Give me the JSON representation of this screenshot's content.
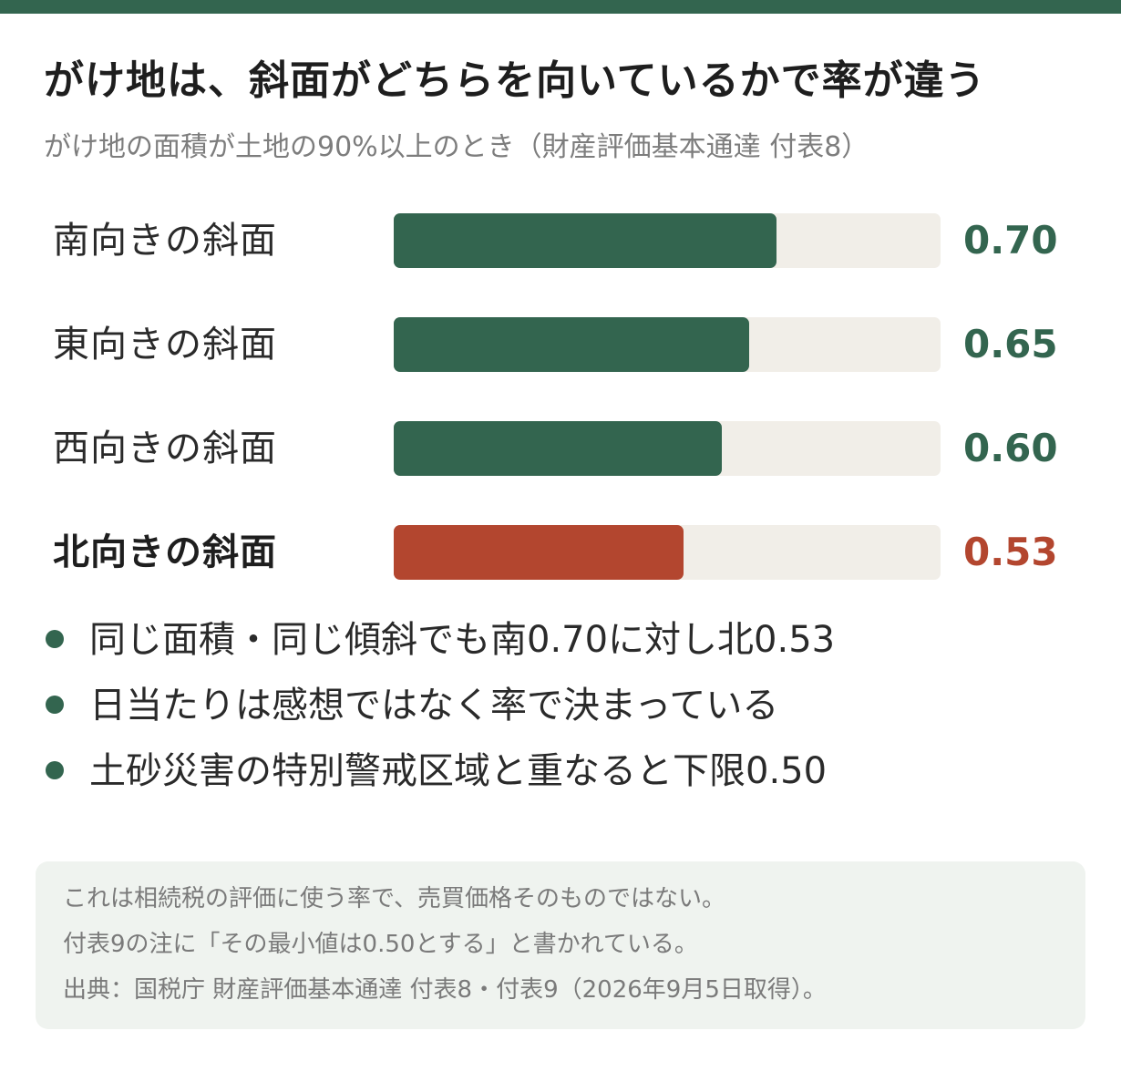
{
  "colors": {
    "accent": "#33654f",
    "highlight": "#b3462f",
    "track": "#f1eee8",
    "note_bg": "#eff3ef"
  },
  "chart_data": {
    "type": "bar",
    "orientation": "horizontal",
    "title": "がけ地は、斜面がどちらを向いているかで率が違う",
    "subtitle": "がけ地の面積が土地の90%以上のとき（財産評価基本通達 付表8）",
    "xlim": [
      0,
      1
    ],
    "categories": [
      "南向きの斜面",
      "東向きの斜面",
      "西向きの斜面",
      "北向きの斜面"
    ],
    "values": [
      0.7,
      0.65,
      0.6,
      0.53
    ],
    "value_labels": [
      "0.70",
      "0.65",
      "0.60",
      "0.53"
    ],
    "highlight_index": 3,
    "grid": false,
    "legend": "none"
  },
  "bullets": [
    "同じ面積・同じ傾斜でも南0.70に対し北0.53",
    "日当たりは感想ではなく率で決まっている",
    "土砂災害の特別警戒区域と重なると下限0.50"
  ],
  "note": {
    "lines": [
      "これは相続税の評価に使う率で、売買価格そのものではない。",
      "付表9の注に「その最小値は0.50とする」と書かれている。",
      "出典：国税庁 財産評価基本通達 付表8・付表9（2026年9月5日取得）。"
    ]
  }
}
